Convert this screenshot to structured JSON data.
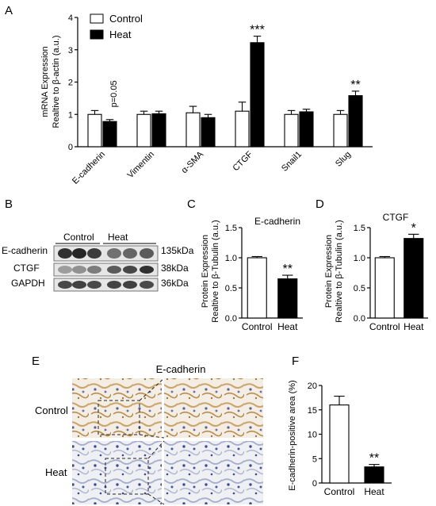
{
  "panels": {
    "A": "A",
    "B": "B",
    "C": "C",
    "D": "D",
    "E": "E",
    "F": "F"
  },
  "chart_data": [
    {
      "id": "A",
      "type": "bar",
      "ylabel_line1": "mRNA Expression",
      "ylabel_line2": "Realtive to β-actin (a.u.)",
      "categories": [
        "E-cadherin",
        "Vimentin",
        "α-SMA",
        "CTGF",
        "Snail1",
        "Slug"
      ],
      "series": [
        {
          "name": "Control",
          "color": "#ffffff",
          "values": [
            1.0,
            1.0,
            1.05,
            1.1,
            1.0,
            1.0
          ],
          "errors": [
            0.12,
            0.1,
            0.2,
            0.28,
            0.12,
            0.12
          ]
        },
        {
          "name": "Heat",
          "color": "#000000",
          "values": [
            0.78,
            1.02,
            0.9,
            3.22,
            1.08,
            1.58
          ],
          "errors": [
            0.06,
            0.08,
            0.1,
            0.2,
            0.08,
            0.14
          ]
        }
      ],
      "ylim": [
        0,
        4
      ],
      "yticks": [
        "0",
        "1",
        "2",
        "3",
        "4"
      ],
      "annotations": [
        "p=0.05",
        "",
        "",
        "***",
        "",
        "**"
      ],
      "legend_placement": "top-left"
    },
    {
      "id": "C",
      "type": "bar",
      "title": "E-cadherin",
      "ylabel_line1": "Protein Expression",
      "ylabel_line2": "Realtive to β-Tubulin (a.u.)",
      "categories": [
        "Control",
        "Heat"
      ],
      "values": [
        1.0,
        0.65
      ],
      "errors": [
        0.02,
        0.06
      ],
      "colors": [
        "#ffffff",
        "#000000"
      ],
      "ylim": [
        0,
        1.5
      ],
      "yticks": [
        "0.0",
        "0.5",
        "1.0",
        "1.5"
      ],
      "annotations": [
        "",
        "**"
      ]
    },
    {
      "id": "D",
      "type": "bar",
      "title": "CTGF",
      "ylabel_line1": "Protein Expression",
      "ylabel_line2": "Realtive to β-Tubulin (a.u.)",
      "categories": [
        "Control",
        "Heat"
      ],
      "values": [
        1.0,
        1.32
      ],
      "errors": [
        0.02,
        0.07
      ],
      "colors": [
        "#ffffff",
        "#000000"
      ],
      "ylim": [
        0,
        1.5
      ],
      "yticks": [
        "0.0",
        "0.5",
        "1.0",
        "1.5"
      ],
      "annotations": [
        "",
        "*"
      ]
    },
    {
      "id": "F",
      "type": "bar",
      "ylabel": "E-cadherin-positive area (%)",
      "categories": [
        "Control",
        "Heat"
      ],
      "values": [
        16.0,
        3.3
      ],
      "errors": [
        1.8,
        0.5
      ],
      "colors": [
        "#ffffff",
        "#000000"
      ],
      "ylim": [
        0,
        20
      ],
      "yticks": [
        "0",
        "5",
        "10",
        "15",
        "20"
      ],
      "annotations": [
        "",
        "**"
      ]
    }
  ],
  "blot": {
    "group_labels": [
      "Control",
      "Heat"
    ],
    "proteins": [
      "E-cadherin",
      "CTGF",
      "GAPDH"
    ],
    "sizes": [
      "135kDa",
      "38kDa",
      "36kDa"
    ]
  },
  "micro": {
    "title": "E-cadherin",
    "rows": [
      "Control",
      "Heat"
    ]
  }
}
